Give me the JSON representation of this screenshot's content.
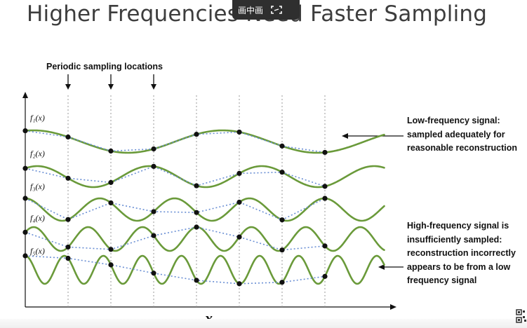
{
  "slide": {
    "title": "Higher Frequencies Need Faster Sampling"
  },
  "overlay": {
    "label": "画中画"
  },
  "annotations": {
    "top": "Periodic sampling locations",
    "low": "Low-frequency signal: sampled adequately for reasonable reconstruction",
    "high": "High-frequency signal is insufficiently sampled: reconstruction incorrectly appears to be from a low frequency signal"
  },
  "labels": {
    "functions": [
      "f₁(x)",
      "f₂(x)",
      "f₃(x)",
      "f₄(x)",
      "f₅(x)"
    ],
    "x_axis": "x"
  },
  "colors": {
    "signal": "#6a9a3a",
    "reconstruction": "#6a8fd4",
    "sample": "#111111",
    "grid": "#999999"
  },
  "chart_data": {
    "type": "line",
    "xlabel": "x",
    "sample_locations_count": 8,
    "series": [
      {
        "name": "f₁(x)",
        "cycles": 1.9,
        "phase": 1.3
      },
      {
        "name": "f₂(x)",
        "cycles": 3.2,
        "phase": 0.9
      },
      {
        "name": "f₃(x)",
        "cycles": 4.8,
        "phase": 1.6
      },
      {
        "name": "f₄(x)",
        "cycles": 6.6,
        "phase": 0.6
      },
      {
        "name": "f₅(x)",
        "cycles": 9.2,
        "phase": 1.57
      }
    ]
  }
}
